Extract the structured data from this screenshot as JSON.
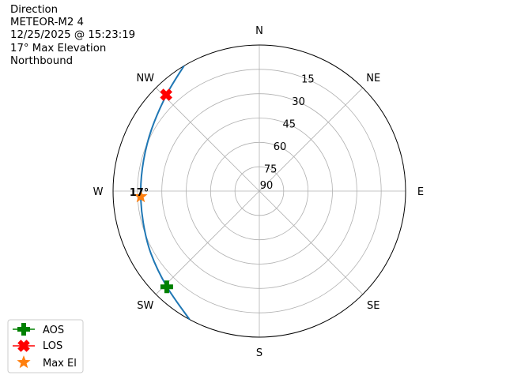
{
  "title_lines": [
    "Direction",
    "METEOR-M2 4",
    "12/25/2025 @ 15:23:19",
    "17° Max Elevation",
    "Northbound"
  ],
  "chart_data": {
    "type": "polar",
    "theta_direction": "clockwise",
    "theta_zero": "north",
    "angle_labels": [
      "N",
      "NE",
      "E",
      "SE",
      "S",
      "SW",
      "W",
      "NW"
    ],
    "radial_axis": "elevation",
    "radial_ticks": [
      15,
      30,
      45,
      60,
      75,
      90
    ],
    "rlim": [
      90,
      0
    ],
    "grid": true,
    "track": {
      "color": "#1f77b4",
      "az": [
        329,
        316.4,
        300,
        285,
        270,
        255,
        240,
        223.8,
        208.5
      ],
      "el": [
        0,
        7.5,
        13.5,
        16.3,
        17,
        16,
        13,
        8,
        0
      ]
    },
    "markers": [
      {
        "name": "AOS",
        "az": 224,
        "el": 8,
        "symbol": "plus",
        "color": "#008000"
      },
      {
        "name": "LOS",
        "az": 316,
        "el": 7.5,
        "symbol": "x",
        "color": "#ff0000"
      },
      {
        "name": "Max El",
        "az": 268.5,
        "el": 17,
        "symbol": "star",
        "color": "#ff7f0e"
      }
    ],
    "annotation": "17°",
    "legend_position": "lower-left"
  }
}
